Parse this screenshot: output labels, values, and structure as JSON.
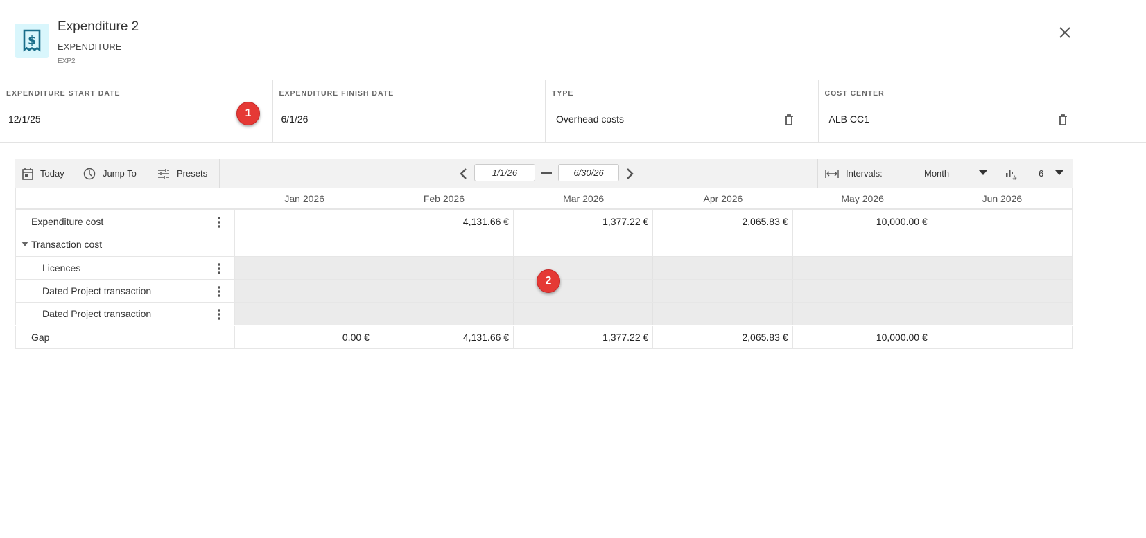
{
  "header": {
    "title": "Expenditure 2",
    "type": "EXPENDITURE",
    "code": "EXP2",
    "icon": "receipt-dollar-icon",
    "icon_color": "#1a6e8a",
    "icon_bg": "#d9f6fc"
  },
  "fields": [
    {
      "label": "EXPENDITURE START DATE",
      "value": "12/1/25"
    },
    {
      "label": "EXPENDITURE FINISH DATE",
      "value": "6/1/26"
    },
    {
      "label": "TYPE",
      "value": "Overhead costs"
    },
    {
      "label": "COST CENTER",
      "value": "ALB CC1"
    }
  ],
  "annotations": [
    "1",
    "2"
  ],
  "toolbar": {
    "today": "Today",
    "jump_to": "Jump To",
    "presets": "Presets",
    "start_date": "1/1/26",
    "end_date": "6/30/26",
    "intervals_label": "Intervals:",
    "interval_value": "Month",
    "count_value": "6"
  },
  "grid": {
    "months": [
      "Jan 2026",
      "Feb 2026",
      "Mar 2026",
      "Apr 2026",
      "May 2026",
      "Jun 2026"
    ],
    "rows": [
      {
        "label": "Expenditure cost",
        "values": [
          "",
          "4,131.66 €",
          "1,377.22 €",
          "2,065.83 €",
          "10,000.00 €",
          ""
        ]
      },
      {
        "label": "Transaction cost",
        "values": [
          "",
          "",
          "",
          "",
          "",
          ""
        ]
      },
      {
        "label": "Licences",
        "values": [
          "",
          "",
          "",
          "",
          "",
          ""
        ]
      },
      {
        "label": "Dated Project transaction",
        "values": [
          "",
          "",
          "",
          "",
          "",
          ""
        ]
      },
      {
        "label": "Dated Project transaction",
        "values": [
          "",
          "",
          "",
          "",
          "",
          ""
        ]
      },
      {
        "label": "Gap",
        "values": [
          "0.00 €",
          "4,131.66 €",
          "1,377.22 €",
          "2,065.83 €",
          "10,000.00 €",
          ""
        ]
      }
    ]
  },
  "colors": {
    "badge": "#e53935",
    "shaded": "#ebebeb"
  }
}
